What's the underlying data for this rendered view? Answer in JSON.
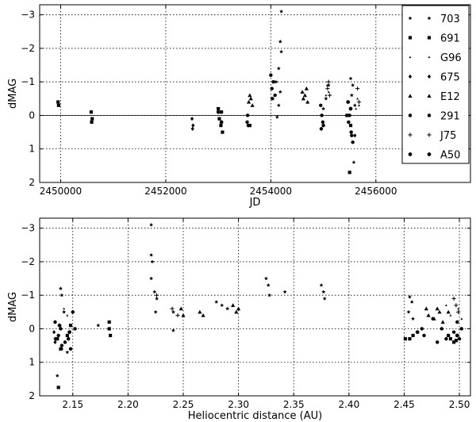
{
  "chart_data": [
    {
      "type": "scatter",
      "xlabel": "JD",
      "ylabel": "dMAG",
      "xlim": [
        2449600,
        2457800
      ],
      "ylim": [
        2,
        -3.3
      ],
      "y_inverted": true,
      "grid": true,
      "zero_line": true,
      "x_ticks": [
        2450000,
        2452000,
        2454000,
        2456000
      ],
      "y_ticks": [
        -3,
        -2,
        -1,
        0,
        1,
        2
      ],
      "legend_position": "right",
      "series": [
        {
          "name": "703",
          "marker": "star",
          "points": [
            [
              2454200,
              -3.1
            ],
            [
              2454180,
              -2.2
            ],
            [
              2454200,
              -1.9
            ],
            [
              2454150,
              -1.4
            ],
            [
              2454100,
              -1.0
            ],
            [
              2454180,
              -0.7
            ],
            [
              2454150,
              -0.3
            ],
            [
              2454120,
              0.05
            ],
            [
              2455520,
              -1.1
            ],
            [
              2455560,
              -0.9
            ],
            [
              2455540,
              -0.6
            ],
            [
              2455600,
              -0.3
            ],
            [
              2455580,
              1.4
            ],
            [
              2455100,
              -0.9
            ],
            [
              2455050,
              -0.5
            ],
            [
              2455000,
              -0.2
            ]
          ]
        },
        {
          "name": "691",
          "marker": "square",
          "points": [
            [
              2449950,
              -0.4
            ],
            [
              2449960,
              -0.3
            ],
            [
              2450580,
              -0.1
            ],
            [
              2450600,
              0.1
            ],
            [
              2450590,
              0.2
            ],
            [
              2453000,
              -0.2
            ],
            [
              2453020,
              0.1
            ],
            [
              2453050,
              0.3
            ],
            [
              2453080,
              0.5
            ],
            [
              2453060,
              -0.1
            ],
            [
              2453600,
              0.3
            ],
            [
              2455500,
              1.7
            ],
            [
              2455520,
              0.3
            ],
            [
              2455450,
              0.0
            ]
          ]
        },
        {
          "name": "G96",
          "marker": "triangle-small",
          "points": [
            [
              2455070,
              -0.9
            ],
            [
              2455100,
              -0.7
            ],
            [
              2455050,
              -0.6
            ],
            [
              2455650,
              -0.5
            ],
            [
              2455680,
              -0.3
            ],
            [
              2455620,
              -0.2
            ]
          ]
        },
        {
          "name": "675",
          "marker": "diamond",
          "points": [
            [
              2452500,
              0.1
            ],
            [
              2452520,
              0.3
            ],
            [
              2452510,
              0.4
            ],
            [
              2455600,
              0.6
            ]
          ]
        },
        {
          "name": "E12",
          "marker": "triangle",
          "points": [
            [
              2453600,
              -0.6
            ],
            [
              2453620,
              -0.5
            ],
            [
              2453580,
              -0.4
            ],
            [
              2453650,
              -0.3
            ],
            [
              2454600,
              -0.7
            ],
            [
              2454650,
              -0.6
            ],
            [
              2454620,
              -0.5
            ],
            [
              2454700,
              -0.4
            ],
            [
              2454680,
              -0.8
            ]
          ]
        },
        {
          "name": "291",
          "marker": "circle",
          "points": [
            [
              2453550,
              0.2
            ],
            [
              2453570,
              0.3
            ],
            [
              2453560,
              0.0
            ],
            [
              2454000,
              -1.2
            ],
            [
              2454050,
              -1.0
            ],
            [
              2454020,
              -0.8
            ],
            [
              2454080,
              -0.6
            ],
            [
              2454030,
              -0.5
            ],
            [
              2454950,
              -0.3
            ],
            [
              2454970,
              0.0
            ],
            [
              2454990,
              0.2
            ],
            [
              2455000,
              0.3
            ],
            [
              2454960,
              0.4
            ],
            [
              2455480,
              0.2
            ],
            [
              2455530,
              0.5
            ],
            [
              2455560,
              0.8
            ],
            [
              2455500,
              0.0
            ],
            [
              2455540,
              0.6
            ]
          ]
        },
        {
          "name": "J75",
          "marker": "plus",
          "points": [
            [
              2455100,
              -1.0
            ],
            [
              2455080,
              -0.8
            ],
            [
              2455120,
              -0.6
            ],
            [
              2455650,
              -0.8
            ],
            [
              2455680,
              -0.4
            ]
          ]
        },
        {
          "name": "A50",
          "marker": "hexagon",
          "points": [
            [
              2453000,
              -0.1
            ],
            [
              2453060,
              0.2
            ],
            [
              2455470,
              -0.4
            ],
            [
              2455520,
              -0.2
            ]
          ]
        }
      ]
    },
    {
      "type": "scatter",
      "xlabel": "Heliocentric distance (AU)",
      "ylabel": "dMAG",
      "xlim": [
        2.12,
        2.51
      ],
      "ylim": [
        2,
        -3.3
      ],
      "y_inverted": true,
      "grid": true,
      "x_ticks": [
        2.15,
        2.2,
        2.25,
        2.3,
        2.35,
        2.4,
        2.45,
        2.5
      ],
      "x_tick_labels": [
        "2.15",
        "2.20",
        "2.25",
        "2.30",
        "2.35",
        "2.40",
        "2.45",
        "2.50"
      ],
      "y_ticks": [
        -3,
        -2,
        -1,
        0,
        1,
        2
      ],
      "series": [
        {
          "name": "703",
          "marker": "star",
          "points": [
            [
              2.221,
              -3.1
            ],
            [
              2.221,
              -2.2
            ],
            [
              2.222,
              -2.0
            ],
            [
              2.221,
              -1.5
            ],
            [
              2.224,
              -1.1
            ],
            [
              2.226,
              -0.9
            ],
            [
              2.225,
              -0.5
            ],
            [
              2.241,
              0.05
            ],
            [
              2.241,
              -0.5
            ],
            [
              2.139,
              -1.2
            ],
            [
              2.14,
              -1.0
            ],
            [
              2.142,
              -0.5
            ],
            [
              2.136,
              1.4
            ],
            [
              2.145,
              0.7
            ],
            [
              2.173,
              -0.1
            ],
            [
              2.325,
              -1.5
            ],
            [
              2.327,
              -1.3
            ],
            [
              2.328,
              -1.0
            ],
            [
              2.342,
              -1.1
            ],
            [
              2.375,
              -1.3
            ],
            [
              2.377,
              -1.1
            ],
            [
              2.378,
              -0.9
            ],
            [
              2.455,
              -0.95
            ],
            [
              2.457,
              -0.8
            ],
            [
              2.454,
              -0.5
            ],
            [
              2.458,
              -0.3
            ],
            [
              2.28,
              -0.8
            ],
            [
              2.285,
              -0.7
            ],
            [
              2.29,
              -0.6
            ]
          ]
        },
        {
          "name": "691",
          "marker": "square",
          "points": [
            [
              2.137,
              1.75
            ],
            [
              2.139,
              0.6
            ],
            [
              2.136,
              0.3
            ],
            [
              2.145,
              0.2
            ],
            [
              2.148,
              -0.1
            ],
            [
              2.183,
              -0.2
            ],
            [
              2.183,
              0.0
            ],
            [
              2.184,
              0.2
            ],
            [
              2.451,
              0.3
            ],
            [
              2.455,
              0.3
            ],
            [
              2.458,
              0.2
            ],
            [
              2.49,
              0.2
            ],
            [
              2.492,
              0.3
            ],
            [
              2.495,
              0.4
            ],
            [
              2.497,
              0.35
            ]
          ]
        },
        {
          "name": "G96",
          "marker": "triangle-small",
          "points": [
            [
              2.142,
              -0.6
            ],
            [
              2.145,
              -0.4
            ],
            [
              2.488,
              -0.7
            ],
            [
              2.492,
              -0.4
            ],
            [
              2.499,
              -0.6
            ],
            [
              2.502,
              -0.3
            ]
          ]
        },
        {
          "name": "675",
          "marker": "diamond",
          "points": [
            [
              2.133,
              0.1
            ],
            [
              2.134,
              0.3
            ],
            [
              2.134,
              0.4
            ],
            [
              2.14,
              0.6
            ]
          ]
        },
        {
          "name": "E12",
          "marker": "triangle",
          "points": [
            [
              2.248,
              -0.6
            ],
            [
              2.25,
              -0.4
            ],
            [
              2.265,
              -0.5
            ],
            [
              2.268,
              -0.4
            ],
            [
              2.295,
              -0.7
            ],
            [
              2.298,
              -0.5
            ],
            [
              2.3,
              -0.6
            ],
            [
              2.47,
              -0.6
            ],
            [
              2.472,
              -0.4
            ],
            [
              2.477,
              -0.3
            ],
            [
              2.48,
              -0.6
            ],
            [
              2.482,
              -0.5
            ],
            [
              2.485,
              -0.2
            ],
            [
              2.49,
              -0.5
            ]
          ]
        },
        {
          "name": "291",
          "marker": "circle",
          "points": [
            [
              2.135,
              0.3
            ],
            [
              2.137,
              0.2
            ],
            [
              2.139,
              0.0
            ],
            [
              2.14,
              0.5
            ],
            [
              2.143,
              0.4
            ],
            [
              2.146,
              0.3
            ],
            [
              2.148,
              0.6
            ],
            [
              2.15,
              -0.5
            ],
            [
              2.152,
              0.0
            ],
            [
              2.134,
              -0.2
            ],
            [
              2.466,
              0.0
            ],
            [
              2.468,
              0.2
            ],
            [
              2.476,
              -0.3
            ],
            [
              2.48,
              0.4
            ],
            [
              2.484,
              0.0
            ],
            [
              2.488,
              0.3
            ],
            [
              2.495,
              0.1
            ],
            [
              2.498,
              -0.2
            ],
            [
              2.5,
              0.3
            ],
            [
              2.502,
              0.0
            ]
          ]
        },
        {
          "name": "J75",
          "marker": "plus",
          "points": [
            [
              2.226,
              -1.0
            ],
            [
              2.24,
              -0.6
            ],
            [
              2.245,
              -0.4
            ],
            [
              2.495,
              -0.9
            ],
            [
              2.497,
              -0.7
            ],
            [
              2.499,
              -0.5
            ]
          ]
        },
        {
          "name": "A50",
          "marker": "hexagon",
          "points": [
            [
              2.138,
              -0.1
            ],
            [
              2.147,
              0.1
            ],
            [
              2.462,
              0.1
            ],
            [
              2.498,
              0.2
            ]
          ]
        }
      ]
    }
  ]
}
